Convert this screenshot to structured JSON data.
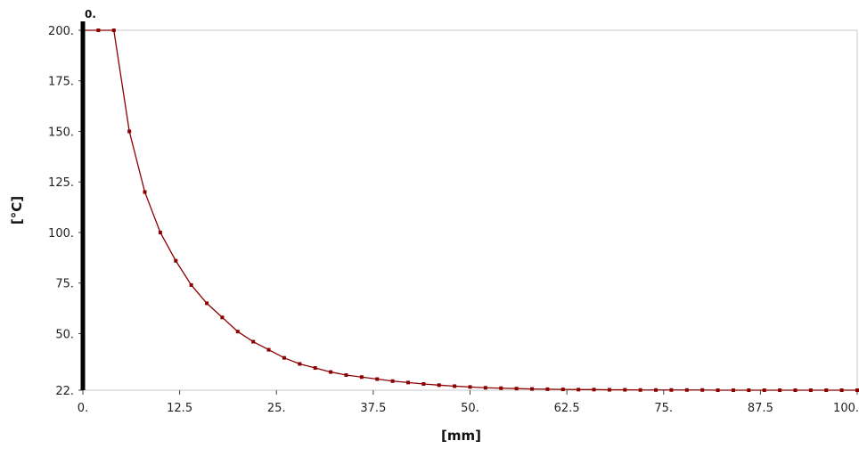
{
  "chart_data": {
    "type": "line",
    "title": "",
    "xlabel": "[mm]",
    "ylabel": "[°C]",
    "xlim": [
      0,
      100
    ],
    "ylim": [
      22,
      200
    ],
    "x_ticks": [
      "0.",
      "12.5",
      "25.",
      "37.5",
      "50.",
      "62.5",
      "75.",
      "87.5",
      "100."
    ],
    "y_ticks": [
      "22.",
      "50.",
      "75.",
      "100.",
      "125.",
      "150.",
      "175.",
      "200."
    ],
    "grid": false,
    "series_color": "#8b0000",
    "marker_line_color": "#000000",
    "vertical_marker": {
      "x": 0,
      "label": "0."
    },
    "series": [
      {
        "points": [
          [
            0,
            200
          ],
          [
            2,
            200
          ],
          [
            4,
            200
          ],
          [
            6,
            150
          ],
          [
            8,
            120
          ],
          [
            10,
            100
          ],
          [
            12,
            86
          ],
          [
            14,
            74
          ],
          [
            16,
            65
          ],
          [
            18,
            58
          ],
          [
            20,
            51
          ],
          [
            22,
            46
          ],
          [
            24,
            42
          ],
          [
            26,
            38
          ],
          [
            28,
            35
          ],
          [
            30,
            33
          ],
          [
            32,
            31
          ],
          [
            34,
            29.5
          ],
          [
            36,
            28.5
          ],
          [
            38,
            27.5
          ],
          [
            40,
            26.5
          ],
          [
            42,
            25.8
          ],
          [
            44,
            25.1
          ],
          [
            46,
            24.5
          ],
          [
            48,
            24
          ],
          [
            50,
            23.6
          ],
          [
            52,
            23.2
          ],
          [
            54,
            23
          ],
          [
            56,
            22.8
          ],
          [
            58,
            22.6
          ],
          [
            60,
            22.5
          ],
          [
            62,
            22.4
          ],
          [
            64,
            22.3
          ],
          [
            66,
            22.3
          ],
          [
            68,
            22.2
          ],
          [
            70,
            22.2
          ],
          [
            72,
            22.1
          ],
          [
            74,
            22.1
          ],
          [
            76,
            22.1
          ],
          [
            78,
            22.1
          ],
          [
            80,
            22.1
          ],
          [
            82,
            22
          ],
          [
            84,
            22
          ],
          [
            86,
            22
          ],
          [
            88,
            22
          ],
          [
            90,
            22
          ],
          [
            92,
            22
          ],
          [
            94,
            22
          ],
          [
            96,
            22
          ],
          [
            98,
            22
          ],
          [
            100,
            22
          ]
        ]
      }
    ]
  }
}
